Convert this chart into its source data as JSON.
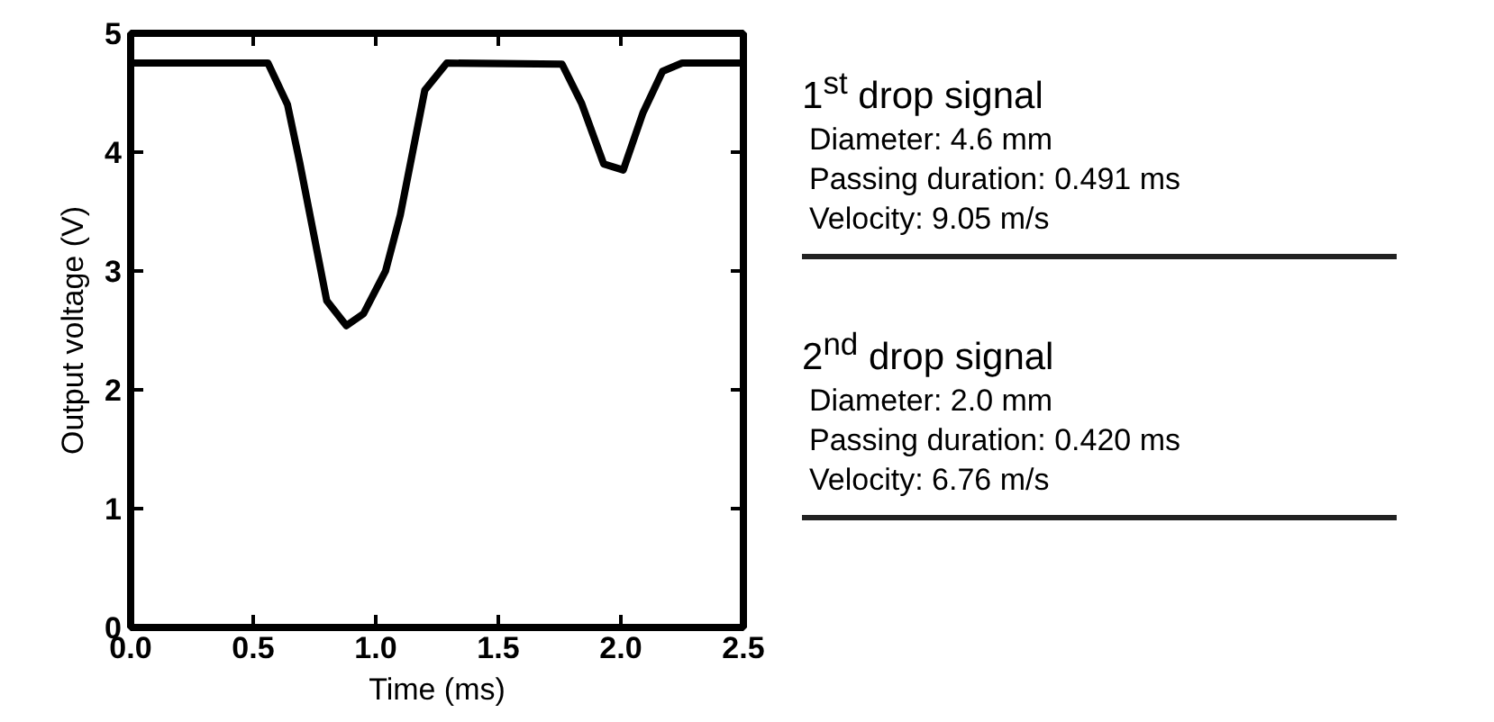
{
  "chart_data": [
    {
      "type": "line",
      "xlabel": "Time (ms)",
      "ylabel": "Output voltage (V)",
      "color": "#000000",
      "line_style": "solid",
      "marker": "none",
      "grid": false,
      "xlim": [
        0,
        2.5
      ],
      "ylim": [
        0,
        5
      ],
      "xticks": [
        {
          "value": 0,
          "label": "0.0"
        },
        {
          "value": 0.5,
          "label": "0.5"
        },
        {
          "value": 1,
          "label": "1.0"
        },
        {
          "value": 1.5,
          "label": "1.5"
        },
        {
          "value": 2,
          "label": "2.0"
        },
        {
          "value": 2.5,
          "label": "2.5"
        }
      ],
      "yticks": [
        0,
        1,
        2,
        3,
        4,
        5
      ],
      "x": [
        0,
        0.56,
        0.64,
        0.69,
        0.8,
        0.88,
        0.95,
        1.04,
        1.1,
        1.2,
        1.29,
        1.76,
        1.84,
        1.93,
        2.01,
        2.09,
        2.17,
        2.25,
        2.5
      ],
      "values": [
        4.75,
        4.75,
        4.4,
        3.91,
        2.75,
        2.54,
        2.64,
        3.0,
        3.47,
        4.52,
        4.75,
        4.74,
        4.41,
        3.9,
        3.85,
        4.33,
        4.68,
        4.75,
        4.75
      ]
    },
    {
      "type": "other",
      "title": "1$^{st}$ drop signal",
      "annotations": [
        "Diameter: 4.6 mm",
        "Passing duration: 0.491 ms",
        "Velocity: 9.05 m/s"
      ]
    },
    {
      "type": "other",
      "title": "2$^{nd}$ drop signal",
      "annotations": [
        "Diameter: 2.0 mm",
        "Passing duration: 0.420 ms",
        "Velocity: 6.76 m/s"
      ]
    }
  ]
}
